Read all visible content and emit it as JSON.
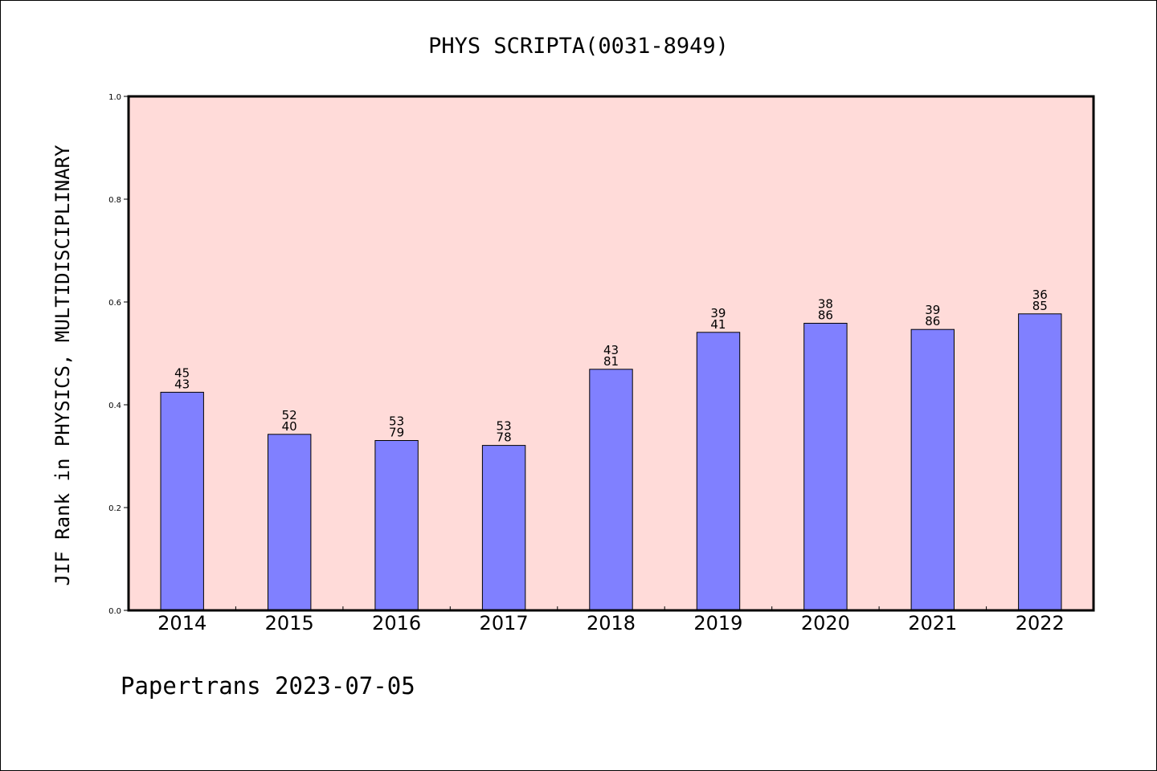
{
  "chart_data": {
    "type": "bar",
    "title": "PHYS SCRIPTA(0031-8949)",
    "xlabel": "",
    "ylabel": "JIF Rank in PHYSICS, MULTIDISCIPLINARY",
    "ylim": [
      0,
      1.0
    ],
    "yticks": [
      "0.0",
      "0.2",
      "0.4",
      "0.6",
      "0.8",
      "1.0"
    ],
    "categories": [
      "2014",
      "2015",
      "2016",
      "2017",
      "2018",
      "2019",
      "2020",
      "2021",
      "2022"
    ],
    "values": [
      0.4243,
      0.3425,
      0.3304,
      0.321,
      0.4691,
      0.541,
      0.5586,
      0.5465,
      0.5768
    ],
    "bar_labels": [
      [
        "45",
        "43"
      ],
      [
        "52",
        "40"
      ],
      [
        "53",
        "79"
      ],
      [
        "53",
        "78"
      ],
      [
        "43",
        "81"
      ],
      [
        "39",
        "41"
      ],
      [
        "38",
        "86"
      ],
      [
        "39",
        "86"
      ],
      [
        "36",
        "85"
      ]
    ],
    "grid": false,
    "legend": "none",
    "colors": {
      "bar": "#8080ff",
      "plot_background": "#ffdbd9",
      "axis": "#000000"
    }
  },
  "footer": {
    "text": "Papertrans 2023-07-05"
  }
}
